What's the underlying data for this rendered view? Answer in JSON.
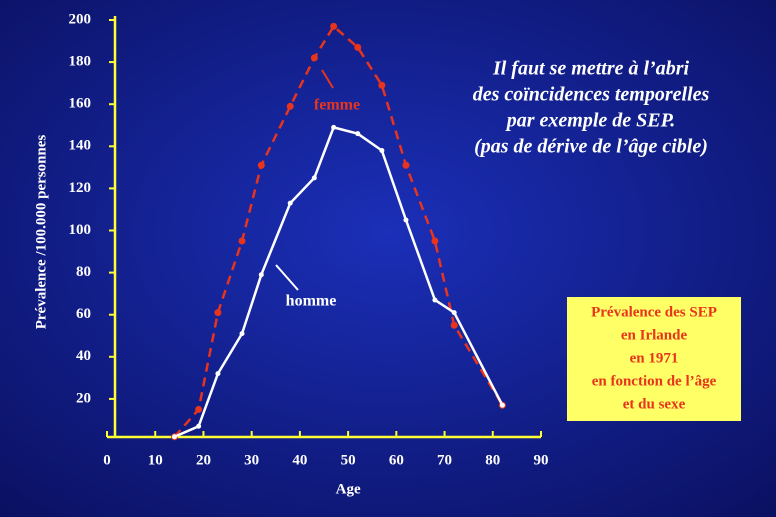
{
  "chart_data": {
    "type": "line",
    "x": [
      14,
      19,
      23,
      28,
      32,
      38,
      43,
      47,
      52,
      57,
      62,
      68,
      72,
      82
    ],
    "series": [
      {
        "name": "femme",
        "color": "#e8341c",
        "dashed": true,
        "values": [
          2,
          15,
          61,
          95,
          131,
          159,
          182,
          197,
          187,
          169,
          131,
          95,
          55,
          17
        ]
      },
      {
        "name": "homme",
        "color": "#ffffff",
        "dashed": false,
        "values": [
          2,
          7,
          32,
          51,
          79,
          113,
          125,
          149,
          146,
          138,
          105,
          67,
          61,
          17
        ]
      }
    ],
    "xlim": [
      0,
      90
    ],
    "ylim": [
      0,
      200
    ],
    "xticks": [
      0,
      10,
      20,
      30,
      40,
      50,
      60,
      70,
      80,
      90
    ],
    "yticks": [
      20,
      40,
      60,
      80,
      100,
      120,
      140,
      160,
      180,
      200
    ],
    "x_label": "Age",
    "y_label": "Prévalence /100.000 personnes",
    "axis_color": "#ffff33",
    "text_block": [
      "Il faut se mettre à l’abri",
      "des coïncidences temporelles",
      "par exemple de SEP.",
      "(pas de dérive de l’âge cible)"
    ],
    "box_lines": [
      "Prévalence des SEP",
      "en Irlande",
      "en 1971",
      "en fonction de l’âge",
      "et du sexe"
    ]
  }
}
